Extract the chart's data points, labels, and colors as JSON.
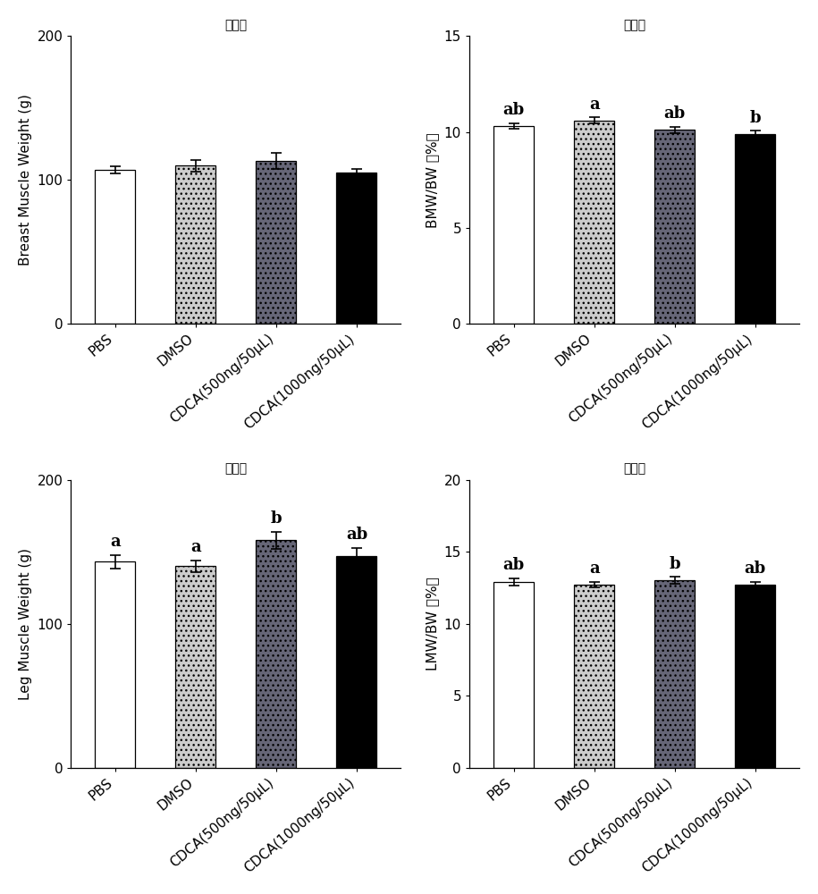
{
  "panels": [
    {
      "title": "胸肌重",
      "ylabel": "Breast Muscle Weight (g)",
      "ylim": [
        0,
        200
      ],
      "yticks": [
        0,
        100,
        200
      ],
      "categories": [
        "PBS",
        "DMSO",
        "CDCA(500ng/50μL)",
        "CDCA(1000ng/50μL)"
      ],
      "values": [
        107.0,
        110.0,
        113.0,
        105.0
      ],
      "errors": [
        2.5,
        4.0,
        5.5,
        2.5
      ],
      "letters": [
        "",
        "",
        "",
        ""
      ],
      "colors": [
        "white",
        "#cccccc",
        "#666677",
        "#000000"
      ],
      "hatches": [
        "",
        "...",
        "...",
        ""
      ],
      "edgecolors": [
        "black",
        "black",
        "black",
        "black"
      ]
    },
    {
      "title": "胸肌率",
      "ylabel": "BMW/BW （%）",
      "ylim": [
        0,
        15
      ],
      "yticks": [
        0,
        5,
        10,
        15
      ],
      "categories": [
        "PBS",
        "DMSO",
        "CDCA(500ng/50μL)",
        "CDCA(1000ng/50μL)"
      ],
      "values": [
        10.3,
        10.6,
        10.1,
        9.9
      ],
      "errors": [
        0.15,
        0.15,
        0.15,
        0.15
      ],
      "letters": [
        "ab",
        "a",
        "ab",
        "b"
      ],
      "colors": [
        "white",
        "#cccccc",
        "#666677",
        "#000000"
      ],
      "hatches": [
        "",
        "...",
        "...",
        ""
      ],
      "edgecolors": [
        "black",
        "black",
        "black",
        "black"
      ]
    },
    {
      "title": "腿肌重",
      "ylabel": "Leg Muscle Weight (g)",
      "ylim": [
        0,
        200
      ],
      "yticks": [
        0,
        100,
        200
      ],
      "categories": [
        "PBS",
        "DMSO",
        "CDCA(500ng/50μL)",
        "CDCA(1000ng/50μL)"
      ],
      "values": [
        143.0,
        140.0,
        158.0,
        147.0
      ],
      "errors": [
        4.5,
        4.0,
        6.0,
        5.5
      ],
      "letters": [
        "a",
        "a",
        "b",
        "ab"
      ],
      "colors": [
        "white",
        "#cccccc",
        "#666677",
        "#000000"
      ],
      "hatches": [
        "",
        "...",
        "...",
        ""
      ],
      "edgecolors": [
        "black",
        "black",
        "black",
        "black"
      ]
    },
    {
      "title": "腿肌率",
      "ylabel": "LMW/BW （%）",
      "ylim": [
        0,
        20
      ],
      "yticks": [
        0,
        5,
        10,
        15,
        20
      ],
      "categories": [
        "PBS",
        "DMSO",
        "CDCA(500ng/50μL)",
        "CDCA(1000ng/50μL)"
      ],
      "values": [
        12.9,
        12.7,
        13.0,
        12.7
      ],
      "errors": [
        0.25,
        0.2,
        0.25,
        0.2
      ],
      "letters": [
        "ab",
        "a",
        "b",
        "ab"
      ],
      "colors": [
        "white",
        "#cccccc",
        "#666677",
        "#000000"
      ],
      "hatches": [
        "",
        "...",
        "...",
        ""
      ],
      "edgecolors": [
        "black",
        "black",
        "black",
        "black"
      ]
    }
  ],
  "bar_width": 0.5,
  "title_fontsize": 18,
  "label_fontsize": 11,
  "tick_fontsize": 11,
  "letter_fontsize": 13
}
